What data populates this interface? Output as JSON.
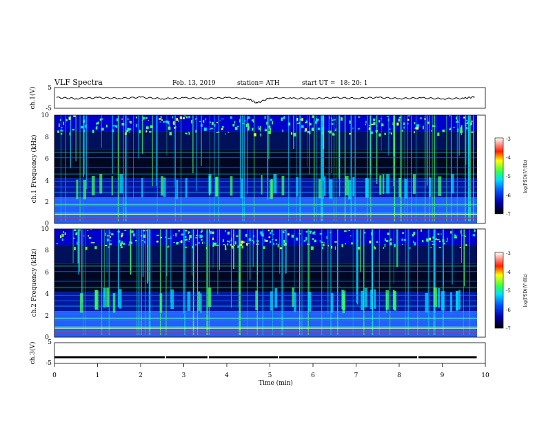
{
  "header": {
    "title": "VLF Spectra",
    "date": "Feb. 13, 2019",
    "station": "station= ATH",
    "start": "start UT =",
    "start_time": "18: 20: 1"
  },
  "chart_data": [
    {
      "type": "line",
      "title": "",
      "ylabel": "ch.1(V)",
      "ylim": [
        -5,
        5
      ],
      "yticks": [
        "5",
        "-5"
      ],
      "xlim": [
        0,
        10
      ],
      "series": [
        {
          "x": [
            0.05,
            0.5,
            1,
            1.5,
            2,
            2.5,
            3,
            3.5,
            4,
            4.5,
            4.7,
            5,
            5.5,
            6,
            6.5,
            7,
            7.5,
            8,
            8.5,
            9,
            9.5,
            9.75
          ],
          "values": [
            0.2,
            -0.3,
            0.1,
            -0.2,
            0.3,
            -0.4,
            0.0,
            -0.3,
            0.1,
            -0.5,
            -2.5,
            0.0,
            -0.2,
            -0.3,
            0.1,
            -0.2,
            0.2,
            -0.3,
            0.0,
            -0.4,
            -0.2,
            0.5
          ]
        }
      ]
    },
    {
      "type": "heatmap",
      "title": "",
      "ylabel": "ch.1 Frequency (kHz)",
      "xlim": [
        0,
        10
      ],
      "ylim": [
        0,
        10
      ],
      "yticks": [
        "0",
        "2",
        "4",
        "6",
        "8",
        "10"
      ],
      "colorbar": {
        "label": "log(PSD)(V²/Hz)",
        "ticks": [
          "-3",
          "-4",
          "-5",
          "-6",
          "-7"
        ],
        "range": [
          -7,
          -3
        ]
      }
    },
    {
      "type": "heatmap",
      "title": "",
      "ylabel": "ch.2 Frequency (kHz)",
      "xlim": [
        0,
        10
      ],
      "ylim": [
        0,
        10
      ],
      "yticks": [
        "0",
        "2",
        "4",
        "6",
        "8",
        "10"
      ],
      "colorbar": {
        "label": "log(PSD)(V²/Hz)",
        "ticks": [
          "-3",
          "-4",
          "-5",
          "-6",
          "-7"
        ],
        "range": [
          -7,
          -3
        ]
      }
    },
    {
      "type": "line",
      "title": "",
      "ylabel": "ch.3(V)",
      "ylim": [
        -5,
        5
      ],
      "yticks": [
        "5",
        "-5"
      ],
      "xlim": [
        0,
        10
      ],
      "xlabel": "Time (min)",
      "xticks": [
        "0",
        "1",
        "2",
        "3",
        "4",
        "5",
        "6",
        "7",
        "8",
        "9",
        "10"
      ],
      "series": [
        {
          "x": [
            0,
            9.8
          ],
          "values": [
            -2,
            -2
          ]
        }
      ]
    }
  ],
  "colors": {
    "spec_low": "#000000",
    "spec_mid": "#0000cc",
    "spec_blue": "#2060ff",
    "spec_cyan": "#00e0ff",
    "spec_green": "#40ff60",
    "spec_yellow": "#ffff00",
    "spec_red": "#ff2000"
  }
}
